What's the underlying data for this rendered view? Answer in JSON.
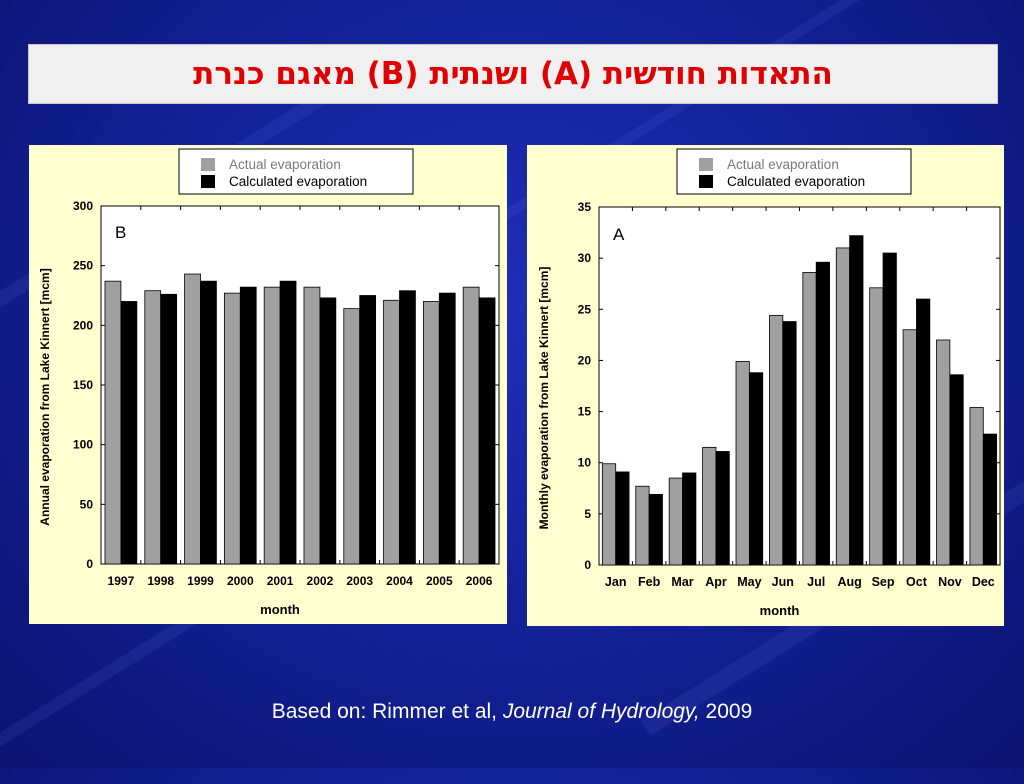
{
  "slide_title": "התאדות חודשית (A)  ושנתית (B) מאגם כנרת",
  "footer": {
    "prefix": "Based on: Rimmer et al, ",
    "journal": "Journal of Hydrology,",
    "year": " 2009"
  },
  "colors": {
    "actual": "#a0a0a0",
    "calculated": "#000000",
    "panel_bg": "#ffffd0",
    "title_text": "#e00000"
  },
  "chart_data": [
    {
      "type": "bar",
      "panel_letter": "B",
      "categories": [
        "1997",
        "1998",
        "1999",
        "2000",
        "2001",
        "2002",
        "2003",
        "2004",
        "2005",
        "2006"
      ],
      "series": [
        {
          "name": "Actual evaporation",
          "values": [
            237,
            229,
            243,
            227,
            232,
            232,
            214,
            221,
            220,
            232
          ]
        },
        {
          "name": "Calculated evaporation",
          "values": [
            220,
            226,
            237,
            232,
            237,
            223,
            225,
            229,
            227,
            223
          ]
        }
      ],
      "xlabel": "month",
      "ylabel": "Annual evaporation from Lake Kinnert [mcm]",
      "ylim": [
        0,
        300
      ],
      "yticks": [
        0,
        50,
        100,
        150,
        200,
        250,
        300
      ],
      "legend_position": "top-right",
      "grid": false
    },
    {
      "type": "bar",
      "panel_letter": "A",
      "categories": [
        "Jan",
        "Feb",
        "Mar",
        "Apr",
        "May",
        "Jun",
        "Jul",
        "Aug",
        "Sep",
        "Oct",
        "Nov",
        "Dec"
      ],
      "series": [
        {
          "name": "Actual evaporation",
          "values": [
            9.9,
            7.7,
            8.5,
            11.5,
            19.9,
            24.4,
            28.6,
            31.0,
            27.1,
            23.0,
            22.0,
            15.4
          ]
        },
        {
          "name": "Calculated evaporation",
          "values": [
            9.1,
            6.9,
            9.0,
            11.1,
            18.8,
            23.8,
            29.6,
            32.2,
            30.5,
            26.0,
            18.6,
            12.8
          ]
        }
      ],
      "xlabel": "month",
      "ylabel": "Monthly evaporation from Lake Kinnert [mcm]",
      "ylim": [
        0,
        35
      ],
      "yticks": [
        0,
        5,
        10,
        15,
        20,
        25,
        30,
        35
      ],
      "legend_position": "top-right",
      "grid": false
    }
  ]
}
